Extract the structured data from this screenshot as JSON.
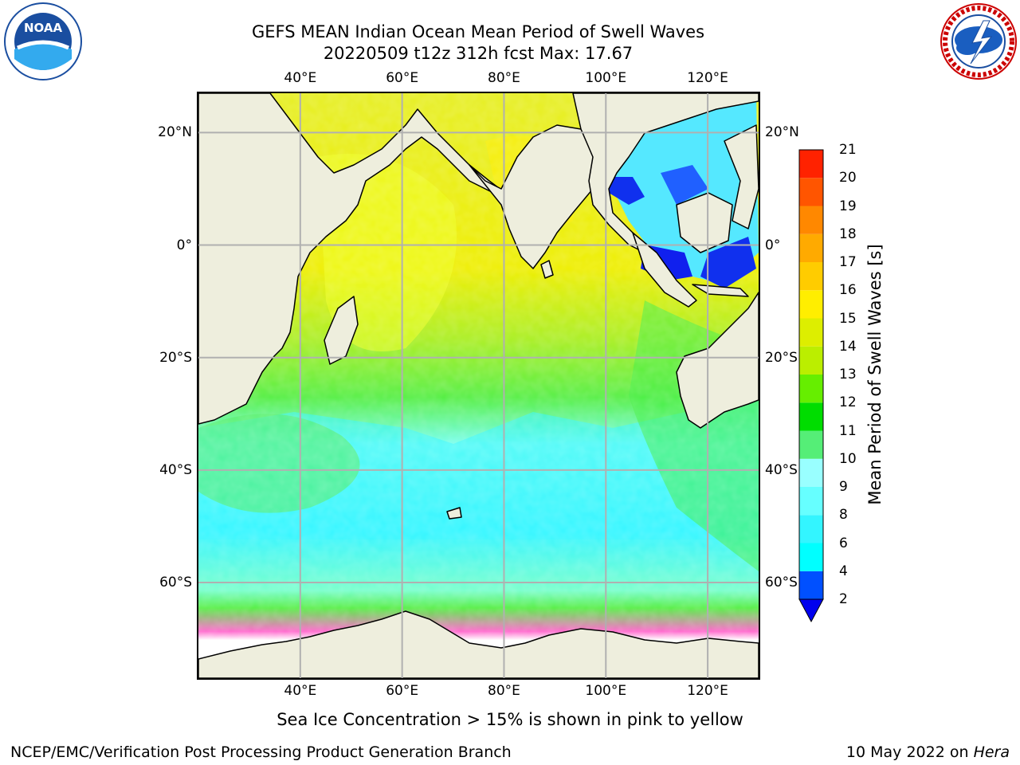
{
  "title": {
    "line1": "GEFS MEAN Indian Ocean Mean Period of Swell Waves",
    "line2": "20220509 t12z 312h fcst   Max: 17.67"
  },
  "map": {
    "lon_ticks": [
      "40°E",
      "60°E",
      "80°E",
      "100°E",
      "120°E"
    ],
    "lat_ticks": [
      "20°N",
      "0°",
      "20°S",
      "40°S",
      "60°S"
    ],
    "lon_range": [
      20,
      130
    ],
    "lat_range": [
      -77,
      27
    ]
  },
  "colorbar": {
    "label": "Mean Period of Swell Waves [s]",
    "ticks": [
      "2",
      "4",
      "6",
      "8",
      "9",
      "10",
      "11",
      "12",
      "13",
      "14",
      "15",
      "16",
      "17",
      "18",
      "19",
      "20",
      "21"
    ],
    "colors": [
      "#0050ff",
      "#00ffff",
      "#33f5ff",
      "#66ffff",
      "#99ffff",
      "#55ee77",
      "#00dd00",
      "#66ee00",
      "#bbee00",
      "#ddee00",
      "#ffee00",
      "#ffcc00",
      "#ffaa00",
      "#ff8800",
      "#ff5500",
      "#ff2200"
    ],
    "under_color": "#0000ee"
  },
  "note": "Sea Ice Concentration > 15% is shown in pink to yellow",
  "footer": {
    "left": "NCEP/EMC/Verification Post Processing Product Generation Branch",
    "right_date": "10 May 2022 on ",
    "right_host": "Hera"
  },
  "logos": {
    "noaa_text": "NOAA",
    "noaa_ring": "NATIONAL OCEANIC AND ATMOSPHERIC ADMINISTRATION · U.S. DEPARTMENT OF COMMERCE",
    "nws_ring": "NATIONAL WEATHER SERVICE"
  }
}
